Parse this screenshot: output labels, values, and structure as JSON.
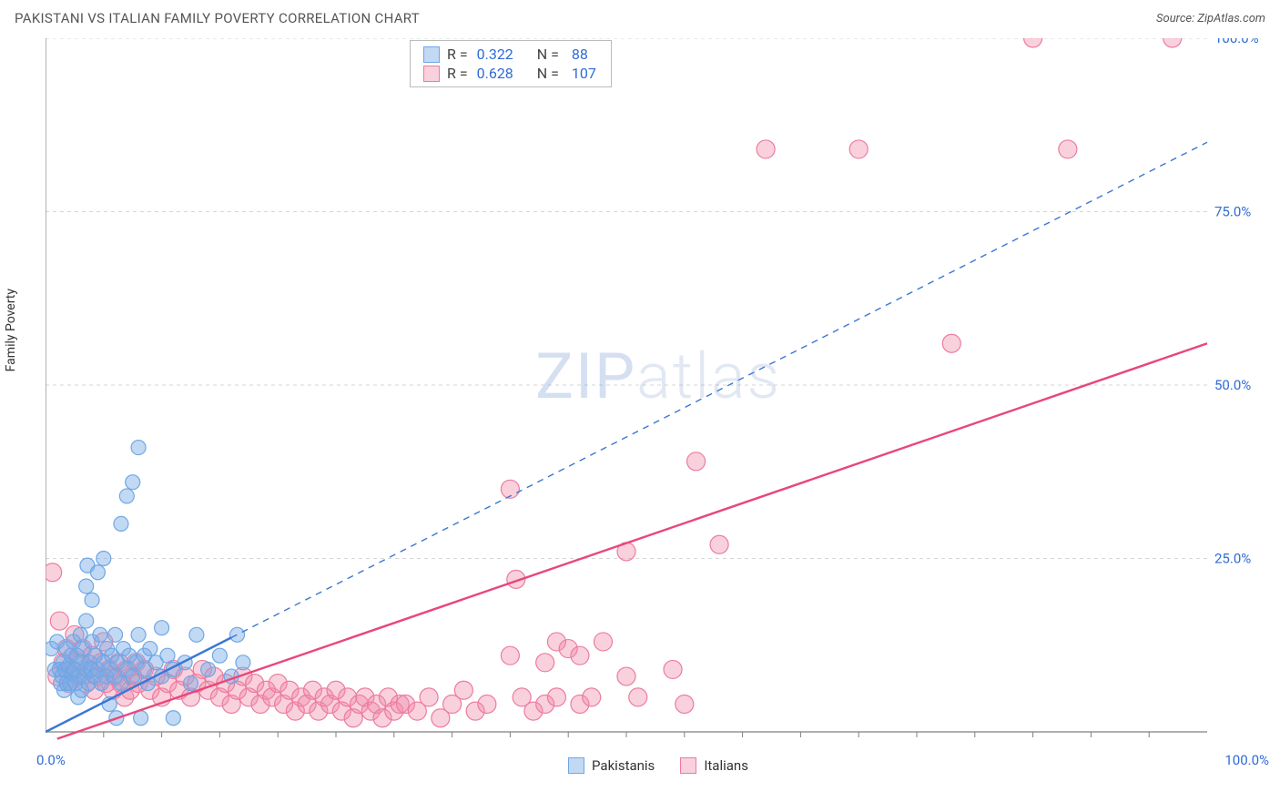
{
  "header": {
    "title": "PAKISTANI VS ITALIAN FAMILY POVERTY CORRELATION CHART",
    "source_label": "Source: ZipAtlas.com"
  },
  "watermark": {
    "zip": "ZIP",
    "atlas": "atlas"
  },
  "chart": {
    "type": "scatter",
    "ylabel": "Family Poverty",
    "xlim": [
      0,
      100
    ],
    "ylim": [
      0,
      100
    ],
    "grid_color": "#d6d6d6",
    "axis_color": "#808080",
    "tick_label_color": "#2f6bd6",
    "tick_fontsize": 15,
    "ytick_labels": [
      "25.0%",
      "50.0%",
      "75.0%",
      "100.0%"
    ],
    "ytick_values": [
      25,
      50,
      75,
      100
    ],
    "x_origin_label": "0.0%",
    "x_max_label": "100.0%",
    "x_minor_ticks": [
      5,
      10,
      15,
      20,
      25,
      30,
      35,
      40,
      45,
      50,
      55,
      60,
      65,
      70,
      75,
      80,
      85,
      90,
      95
    ],
    "series_a": {
      "name": "Pakistanis",
      "marker_fill": "rgba(120,170,230,0.45)",
      "marker_stroke": "#6ea7e5",
      "marker_radius": 8,
      "line_color": "#3a77d4",
      "line_width": 2.4,
      "line_solid_end_x": 16,
      "line_end_y_at_100": 85,
      "R": "0.322",
      "N": "88",
      "points": [
        [
          0.5,
          12
        ],
        [
          0.8,
          9
        ],
        [
          1.0,
          13
        ],
        [
          1.2,
          9
        ],
        [
          1.3,
          7
        ],
        [
          1.4,
          8
        ],
        [
          1.5,
          10
        ],
        [
          1.6,
          6
        ],
        [
          1.7,
          9
        ],
        [
          1.8,
          7
        ],
        [
          1.8,
          12
        ],
        [
          2.0,
          9.5
        ],
        [
          2.1,
          7
        ],
        [
          2.2,
          11
        ],
        [
          2.3,
          8.5
        ],
        [
          2.4,
          13
        ],
        [
          2.5,
          9
        ],
        [
          2.6,
          7
        ],
        [
          2.7,
          11
        ],
        [
          2.8,
          5
        ],
        [
          2.9,
          8
        ],
        [
          3.0,
          10
        ],
        [
          3.0,
          14
        ],
        [
          3.1,
          6
        ],
        [
          3.2,
          12
        ],
        [
          3.3,
          8
        ],
        [
          3.4,
          9
        ],
        [
          3.5,
          16
        ],
        [
          3.5,
          21
        ],
        [
          3.6,
          24
        ],
        [
          3.7,
          7
        ],
        [
          3.8,
          10
        ],
        [
          3.9,
          9
        ],
        [
          4.0,
          13
        ],
        [
          4.0,
          19
        ],
        [
          4.2,
          8
        ],
        [
          4.3,
          11
        ],
        [
          4.5,
          23
        ],
        [
          4.5,
          9
        ],
        [
          4.7,
          14
        ],
        [
          4.8,
          7
        ],
        [
          5.0,
          10
        ],
        [
          5.0,
          25
        ],
        [
          5.2,
          8
        ],
        [
          5.3,
          12
        ],
        [
          5.5,
          4
        ],
        [
          5.5,
          9
        ],
        [
          5.7,
          11
        ],
        [
          6.0,
          14
        ],
        [
          6.0,
          8
        ],
        [
          6.1,
          2
        ],
        [
          6.2,
          10
        ],
        [
          6.5,
          30
        ],
        [
          6.5,
          7
        ],
        [
          6.7,
          12
        ],
        [
          7.0,
          9
        ],
        [
          7.0,
          34
        ],
        [
          7.2,
          11
        ],
        [
          7.5,
          36
        ],
        [
          7.5,
          8
        ],
        [
          7.8,
          10
        ],
        [
          8.0,
          14
        ],
        [
          8.0,
          41
        ],
        [
          8.2,
          2
        ],
        [
          8.5,
          9
        ],
        [
          8.5,
          11
        ],
        [
          8.8,
          7
        ],
        [
          9.0,
          12
        ],
        [
          9.5,
          10
        ],
        [
          10.0,
          8
        ],
        [
          10.0,
          15
        ],
        [
          10.5,
          11
        ],
        [
          11.0,
          9
        ],
        [
          11.0,
          2
        ],
        [
          12.0,
          10
        ],
        [
          12.5,
          7
        ],
        [
          13.0,
          14
        ],
        [
          14.0,
          9
        ],
        [
          15.0,
          11
        ],
        [
          16.0,
          8
        ],
        [
          16.5,
          14
        ],
        [
          17.0,
          10
        ]
      ]
    },
    "series_b": {
      "name": "Italians",
      "marker_fill": "rgba(240,140,170,0.40)",
      "marker_stroke": "#ed7ba0",
      "marker_radius": 10,
      "line_color": "#e8477a",
      "line_width": 2.4,
      "line_start_y": -1,
      "line_end_y_at_100": 56,
      "R": "0.628",
      "N": "107",
      "points": [
        [
          0.6,
          23
        ],
        [
          1.0,
          8
        ],
        [
          1.2,
          16
        ],
        [
          1.5,
          10
        ],
        [
          1.8,
          12
        ],
        [
          2.0,
          7
        ],
        [
          2.2,
          9
        ],
        [
          2.5,
          14
        ],
        [
          2.8,
          8
        ],
        [
          3.0,
          10
        ],
        [
          3.2,
          12
        ],
        [
          3.5,
          7
        ],
        [
          3.8,
          9
        ],
        [
          4.0,
          11
        ],
        [
          4.2,
          6
        ],
        [
          4.5,
          8
        ],
        [
          4.8,
          10
        ],
        [
          5.0,
          13
        ],
        [
          5.2,
          7
        ],
        [
          5.5,
          9
        ],
        [
          5.8,
          6
        ],
        [
          6.0,
          8
        ],
        [
          6.3,
          10
        ],
        [
          6.5,
          7
        ],
        [
          6.8,
          5
        ],
        [
          7.0,
          9
        ],
        [
          7.3,
          6
        ],
        [
          7.5,
          8
        ],
        [
          7.8,
          10
        ],
        [
          8.0,
          7
        ],
        [
          8.5,
          9
        ],
        [
          9.0,
          6
        ],
        [
          9.5,
          8
        ],
        [
          10.0,
          5
        ],
        [
          10.5,
          7
        ],
        [
          11.0,
          9
        ],
        [
          11.5,
          6
        ],
        [
          12.0,
          8
        ],
        [
          12.5,
          5
        ],
        [
          13.0,
          7
        ],
        [
          13.5,
          9
        ],
        [
          14.0,
          6
        ],
        [
          14.5,
          8
        ],
        [
          15.0,
          5
        ],
        [
          15.5,
          7
        ],
        [
          16.0,
          4
        ],
        [
          16.5,
          6
        ],
        [
          17.0,
          8
        ],
        [
          17.5,
          5
        ],
        [
          18.0,
          7
        ],
        [
          18.5,
          4
        ],
        [
          19.0,
          6
        ],
        [
          19.5,
          5
        ],
        [
          20.0,
          7
        ],
        [
          20.5,
          4
        ],
        [
          21.0,
          6
        ],
        [
          21.5,
          3
        ],
        [
          22.0,
          5
        ],
        [
          22.5,
          4
        ],
        [
          23.0,
          6
        ],
        [
          23.5,
          3
        ],
        [
          24.0,
          5
        ],
        [
          24.5,
          4
        ],
        [
          25.0,
          6
        ],
        [
          25.5,
          3
        ],
        [
          26.0,
          5
        ],
        [
          26.5,
          2
        ],
        [
          27.0,
          4
        ],
        [
          27.5,
          5
        ],
        [
          28.0,
          3
        ],
        [
          28.5,
          4
        ],
        [
          29.0,
          2
        ],
        [
          29.5,
          5
        ],
        [
          30.0,
          3
        ],
        [
          30.5,
          4
        ],
        [
          31.0,
          4
        ],
        [
          32.0,
          3
        ],
        [
          33.0,
          5
        ],
        [
          34.0,
          2
        ],
        [
          35.0,
          4
        ],
        [
          36.0,
          6
        ],
        [
          37.0,
          3
        ],
        [
          38.0,
          4
        ],
        [
          40.0,
          11
        ],
        [
          40.0,
          35
        ],
        [
          40.5,
          22
        ],
        [
          41.0,
          5
        ],
        [
          42.0,
          3
        ],
        [
          43.0,
          4
        ],
        [
          43.0,
          10
        ],
        [
          44.0,
          5
        ],
        [
          44.0,
          13
        ],
        [
          45.0,
          12
        ],
        [
          46.0,
          4
        ],
        [
          46.0,
          11
        ],
        [
          47.0,
          5
        ],
        [
          48.0,
          13
        ],
        [
          50.0,
          8
        ],
        [
          50.0,
          26
        ],
        [
          51.0,
          5
        ],
        [
          54.0,
          9
        ],
        [
          55.0,
          4
        ],
        [
          56.0,
          39
        ],
        [
          58.0,
          27
        ],
        [
          62.0,
          84
        ],
        [
          70.0,
          84
        ],
        [
          78.0,
          56
        ],
        [
          85.0,
          100
        ],
        [
          88.0,
          84
        ],
        [
          97.0,
          100
        ]
      ]
    }
  },
  "footer_legend": {
    "a_label": "Pakistanis",
    "b_label": "Italians"
  },
  "stats_labels": {
    "R": "R =",
    "N": "N ="
  }
}
